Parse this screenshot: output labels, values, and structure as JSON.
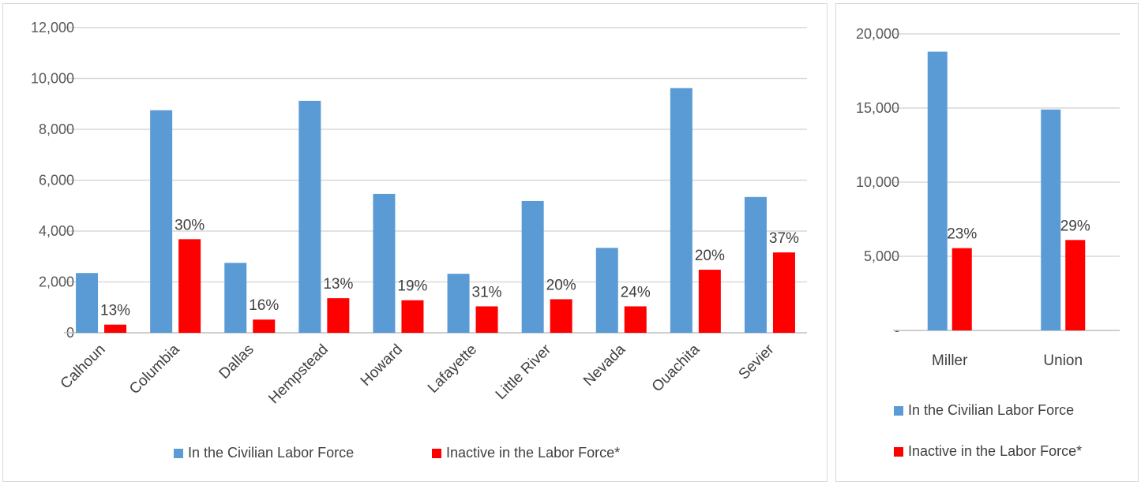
{
  "colors": {
    "labor_force": "#5b9bd5",
    "inactive": "#ff0000",
    "grid": "#d9d9d9",
    "axis": "#bfbfbf"
  },
  "chart_data": [
    {
      "type": "bar",
      "categories": [
        "Calhoun",
        "Columbia",
        "Dallas",
        "Hempstead",
        "Howard",
        "Lafayette",
        "Little River",
        "Nevada",
        "Ouachita",
        "Sevier"
      ],
      "series": [
        {
          "name": "In the Civilian Labor Force",
          "values": [
            2350,
            8750,
            2750,
            9120,
            5460,
            2320,
            5180,
            3340,
            9620,
            5340
          ]
        },
        {
          "name": "Inactive in the Labor Force*",
          "values": [
            320,
            3680,
            520,
            1360,
            1280,
            1040,
            1320,
            1040,
            2480,
            3160
          ],
          "data_labels": [
            "13%",
            "30%",
            "16%",
            "13%",
            "19%",
            "31%",
            "20%",
            "24%",
            "20%",
            "37%"
          ]
        }
      ],
      "y_ticks": [
        "0",
        "2,000",
        "4,000",
        "6,000",
        "8,000",
        "10,000",
        "12,000"
      ],
      "ylim": [
        0,
        12000
      ],
      "grid": true,
      "legend": "bottom"
    },
    {
      "type": "bar",
      "categories": [
        "Miller",
        "Union"
      ],
      "series": [
        {
          "name": "In the Civilian Labor Force",
          "values": [
            18800,
            14900
          ]
        },
        {
          "name": "Inactive in the Labor Force*",
          "values": [
            5550,
            6100
          ],
          "data_labels": [
            "23%",
            "29%"
          ]
        }
      ],
      "y_ticks": [
        "-",
        "5,000",
        "10,000",
        "15,000",
        "20,000"
      ],
      "ylim": [
        0,
        20000
      ],
      "grid": true,
      "legend": "bottom-stacked"
    }
  ]
}
